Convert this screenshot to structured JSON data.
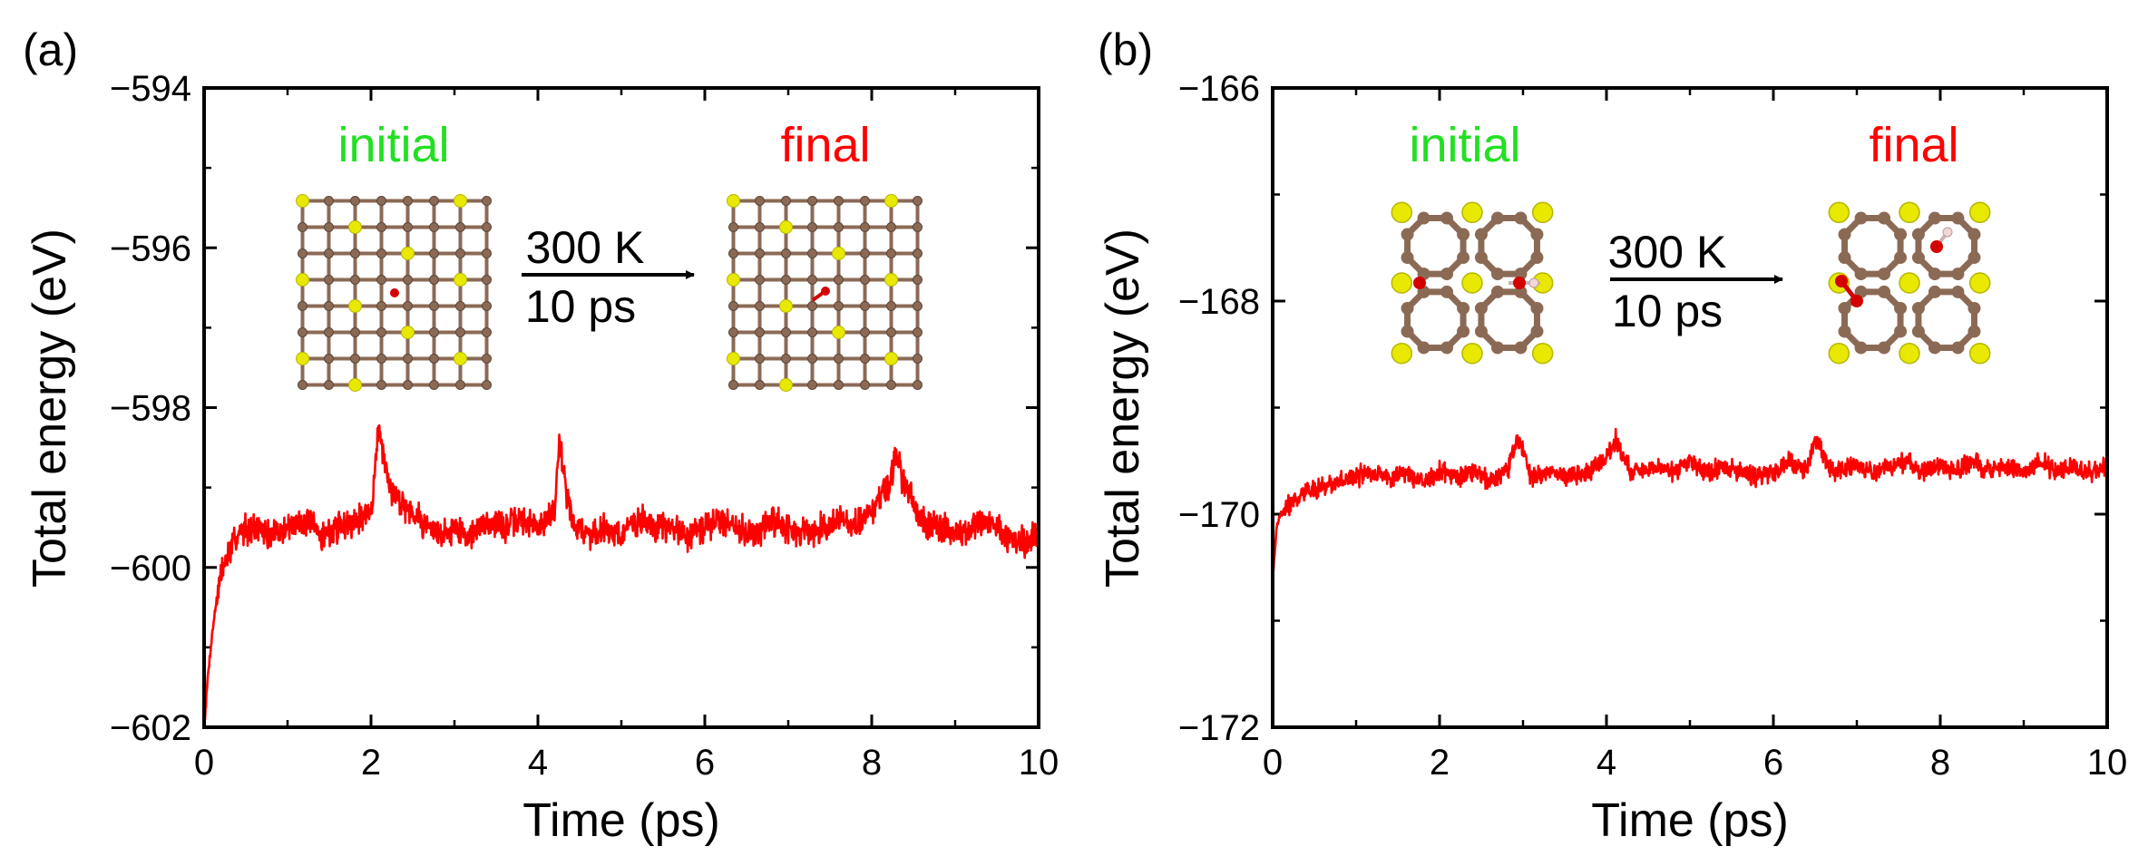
{
  "chart_data": [
    {
      "type": "line",
      "panel_label": "(a)",
      "xlabel": "Time (ps)",
      "ylabel": "Total energy (eV)",
      "xlim": [
        0,
        10
      ],
      "ylim": [
        -602,
        -594
      ],
      "xticks": [
        "0",
        "2",
        "4",
        "6",
        "8",
        "10"
      ],
      "yticks": [
        "−602",
        "−600",
        "−598",
        "−596",
        "−594"
      ],
      "series": [
        {
          "name": "Total energy",
          "color": "#ff0000",
          "x": [
            0,
            0.05,
            0.1,
            0.15,
            0.2,
            0.3,
            0.4,
            0.5,
            0.6,
            0.8,
            1.0,
            1.2,
            1.4,
            1.6,
            1.8,
            2.0,
            2.1,
            2.2,
            2.4,
            2.6,
            2.8,
            3.0,
            3.2,
            3.4,
            3.6,
            3.8,
            4.0,
            4.2,
            4.25,
            4.4,
            4.6,
            4.8,
            5.0,
            5.2,
            5.4,
            5.6,
            5.8,
            6.0,
            6.2,
            6.4,
            6.6,
            6.8,
            7.0,
            7.2,
            7.4,
            7.6,
            7.8,
            8.0,
            8.2,
            8.3,
            8.4,
            8.6,
            8.8,
            9.0,
            9.2,
            9.4,
            9.6,
            9.8,
            10.0
          ],
          "y": [
            -602.0,
            -601.3,
            -600.8,
            -600.4,
            -600.1,
            -599.8,
            -599.6,
            -599.5,
            -599.5,
            -599.6,
            -599.5,
            -599.4,
            -599.6,
            -599.5,
            -599.4,
            -599.3,
            -598.2,
            -599.0,
            -599.2,
            -599.4,
            -599.6,
            -599.5,
            -599.6,
            -599.4,
            -599.5,
            -599.4,
            -599.5,
            -599.3,
            -598.4,
            -599.4,
            -599.6,
            -599.5,
            -599.6,
            -599.4,
            -599.5,
            -599.5,
            -599.6,
            -599.5,
            -599.4,
            -599.5,
            -599.6,
            -599.4,
            -599.5,
            -599.6,
            -599.5,
            -599.4,
            -599.5,
            -599.3,
            -599.0,
            -598.6,
            -599.0,
            -599.4,
            -599.5,
            -599.6,
            -599.5,
            -599.4,
            -599.6,
            -599.7,
            -599.6
          ]
        }
      ],
      "inset": {
        "initial_label": "initial",
        "final_label": "final",
        "temperature": "300 K",
        "duration": "10 ps"
      }
    },
    {
      "type": "line",
      "panel_label": "(b)",
      "xlabel": "Time (ps)",
      "ylabel": "Total energy (eV)",
      "xlim": [
        0,
        10
      ],
      "ylim": [
        -172,
        -166
      ],
      "xticks": [
        "0",
        "2",
        "4",
        "6",
        "8",
        "10"
      ],
      "yticks": [
        "−172",
        "−170",
        "−168",
        "−166"
      ],
      "series": [
        {
          "name": "Total energy",
          "color": "#ff0000",
          "x": [
            0,
            0.05,
            0.1,
            0.2,
            0.4,
            0.6,
            0.8,
            1.0,
            1.2,
            1.4,
            1.6,
            1.8,
            2.0,
            2.2,
            2.4,
            2.6,
            2.8,
            2.95,
            3.1,
            3.4,
            3.6,
            3.8,
            4.0,
            4.1,
            4.3,
            4.6,
            4.8,
            5.0,
            5.2,
            5.4,
            5.6,
            5.8,
            6.0,
            6.2,
            6.4,
            6.5,
            6.7,
            7.0,
            7.2,
            7.4,
            7.6,
            7.8,
            8.0,
            8.2,
            8.4,
            8.6,
            8.8,
            9.0,
            9.2,
            9.4,
            9.6,
            9.8,
            10.0
          ],
          "y": [
            -170.6,
            -170.1,
            -170.0,
            -169.9,
            -169.8,
            -169.75,
            -169.7,
            -169.65,
            -169.6,
            -169.65,
            -169.6,
            -169.7,
            -169.6,
            -169.65,
            -169.6,
            -169.7,
            -169.6,
            -169.3,
            -169.65,
            -169.6,
            -169.65,
            -169.6,
            -169.5,
            -169.3,
            -169.6,
            -169.55,
            -169.6,
            -169.5,
            -169.6,
            -169.55,
            -169.6,
            -169.65,
            -169.6,
            -169.5,
            -169.6,
            -169.3,
            -169.6,
            -169.55,
            -169.6,
            -169.55,
            -169.5,
            -169.6,
            -169.55,
            -169.6,
            -169.5,
            -169.6,
            -169.55,
            -169.6,
            -169.5,
            -169.6,
            -169.55,
            -169.6,
            -169.55
          ]
        }
      ],
      "inset": {
        "initial_label": "initial",
        "final_label": "final",
        "temperature": "300 K",
        "duration": "10 ps"
      }
    }
  ],
  "colors": {
    "line": "#ff0000",
    "initial": "#22e022",
    "final": "#ff0000",
    "carbon": "#8b6a55",
    "sulfur": "#e8e800",
    "oxygen": "#d40000",
    "hydrogen": "#f0d8d8"
  }
}
